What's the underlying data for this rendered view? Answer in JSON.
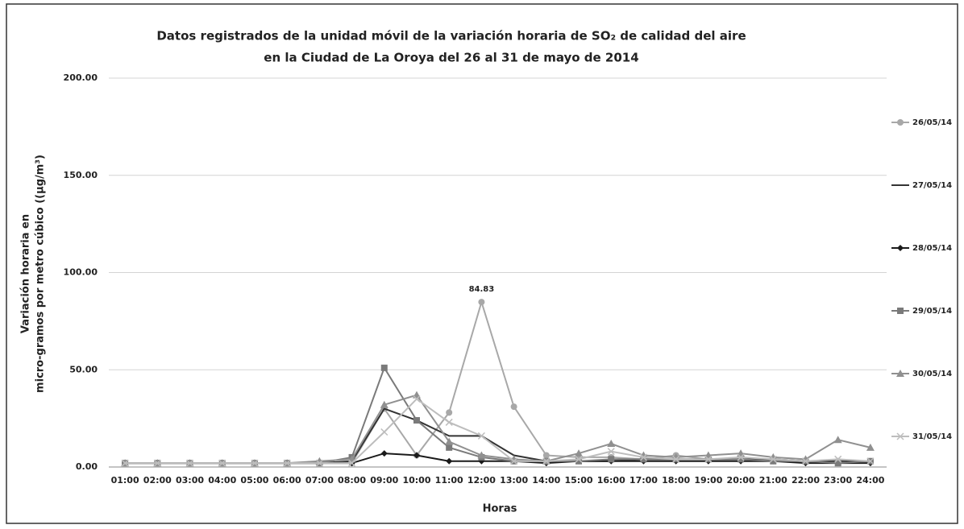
{
  "chart_data": {
    "type": "line",
    "title": [
      "Datos registrados de la unidad móvil de la variación horaria de SO₂ de calidad del aire",
      "en la Ciudad de La Oroya del 26 al 31 de mayo de 2014"
    ],
    "x_label": "Horas",
    "y_label": [
      "Variación horaria en",
      "micro-gramos por metro cúbico ((µg/m³)"
    ],
    "categories": [
      "01:00",
      "02:00",
      "03:00",
      "04:00",
      "05:00",
      "06:00",
      "07:00",
      "08:00",
      "09:00",
      "10:00",
      "11:00",
      "12:00",
      "13:00",
      "14:00",
      "15:00",
      "16:00",
      "17:00",
      "18:00",
      "19:00",
      "20:00",
      "21:00",
      "22:00",
      "23:00",
      "24:00"
    ],
    "ylim": [
      0,
      200
    ],
    "yticks": [
      {
        "value": 0,
        "label": "0.00"
      },
      {
        "value": 50,
        "label": "50.00"
      },
      {
        "value": 100,
        "label": "100.00"
      },
      {
        "value": 150,
        "label": "150.00"
      },
      {
        "value": 200,
        "label": "200.00"
      }
    ],
    "grid": true,
    "legend": "right",
    "series": [
      {
        "name": "26/05/14",
        "color": "#a8a8a8",
        "marker": "circle",
        "values": [
          2,
          2,
          2,
          2,
          2,
          2,
          2,
          2,
          30,
          6,
          28,
          84.83,
          31,
          6,
          5,
          5,
          4,
          6,
          4,
          4,
          4,
          3,
          3,
          3
        ],
        "value_labels": [
          null,
          null,
          null,
          null,
          null,
          null,
          null,
          null,
          null,
          null,
          null,
          "84.83",
          null,
          null,
          null,
          null,
          null,
          null,
          null,
          null,
          null,
          null,
          null,
          null
        ]
      },
      {
        "name": "27/05/14",
        "color": "#333333",
        "marker": "none",
        "values": [
          2,
          2,
          2,
          2,
          2,
          2,
          2,
          3,
          30,
          24,
          16,
          16,
          6,
          3,
          3,
          3,
          4,
          4,
          4,
          4,
          4,
          3,
          3,
          3
        ]
      },
      {
        "name": "28/05/14",
        "color": "#1a1a1a",
        "marker": "diamond",
        "values": [
          2,
          2,
          2,
          2,
          2,
          2,
          2,
          2,
          7,
          6,
          3,
          3,
          3,
          2,
          3,
          3,
          3,
          3,
          3,
          3,
          3,
          2,
          2,
          2
        ]
      },
      {
        "name": "29/05/14",
        "color": "#7a7a7a",
        "marker": "square",
        "values": [
          2,
          2,
          2,
          2,
          2,
          2,
          2,
          5,
          51,
          24,
          10,
          5,
          3,
          3,
          3,
          4,
          4,
          4,
          4,
          4,
          3,
          3,
          2,
          3
        ]
      },
      {
        "name": "30/05/14",
        "color": "#909090",
        "marker": "triangle",
        "values": [
          2,
          2,
          2,
          2,
          2,
          2,
          3,
          4,
          32,
          37,
          13,
          6,
          4,
          3,
          7,
          12,
          6,
          5,
          6,
          7,
          5,
          4,
          14,
          10
        ]
      },
      {
        "name": "31/05/14",
        "color": "#bdbdbd",
        "marker": "x",
        "values": [
          2,
          2,
          2,
          2,
          2,
          2,
          2,
          2,
          18,
          35,
          23,
          16,
          3,
          3,
          4,
          8,
          5,
          4,
          4,
          5,
          4,
          3,
          4,
          3
        ]
      }
    ]
  }
}
